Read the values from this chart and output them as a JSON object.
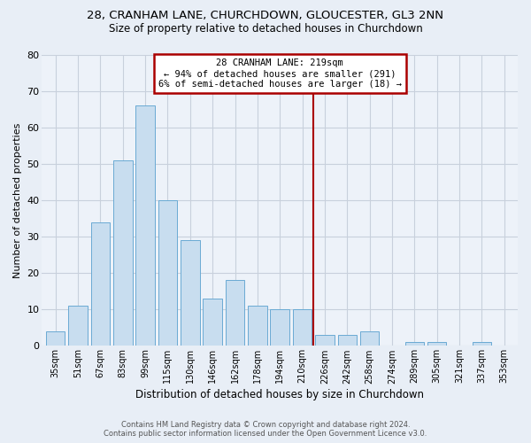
{
  "title1": "28, CRANHAM LANE, CHURCHDOWN, GLOUCESTER, GL3 2NN",
  "title2": "Size of property relative to detached houses in Churchdown",
  "xlabel": "Distribution of detached houses by size in Churchdown",
  "ylabel": "Number of detached properties",
  "bar_labels": [
    "35sqm",
    "51sqm",
    "67sqm",
    "83sqm",
    "99sqm",
    "115sqm",
    "130sqm",
    "146sqm",
    "162sqm",
    "178sqm",
    "194sqm",
    "210sqm",
    "226sqm",
    "242sqm",
    "258sqm",
    "274sqm",
    "289sqm",
    "305sqm",
    "321sqm",
    "337sqm",
    "353sqm"
  ],
  "bar_values": [
    4,
    11,
    34,
    51,
    66,
    40,
    29,
    13,
    18,
    11,
    10,
    10,
    3,
    3,
    4,
    0,
    1,
    1,
    0,
    1,
    0
  ],
  "bar_color": "#c8ddef",
  "bar_edge_color": "#6aaad4",
  "vline_index": 11.5,
  "vline_color": "#aa0000",
  "annotation_line1": "28 CRANHAM LANE: 219sqm",
  "annotation_line2": "← 94% of detached houses are smaller (291)",
  "annotation_line3": "6% of semi-detached houses are larger (18) →",
  "ylim_max": 80,
  "yticks": [
    0,
    10,
    20,
    30,
    40,
    50,
    60,
    70,
    80
  ],
  "footer1": "Contains HM Land Registry data © Crown copyright and database right 2024.",
  "footer2": "Contains public sector information licensed under the Open Government Licence v3.0.",
  "bg_color": "#e8eef6",
  "plot_bg_color": "#edf2f9",
  "grid_color": "#c8d0dc"
}
